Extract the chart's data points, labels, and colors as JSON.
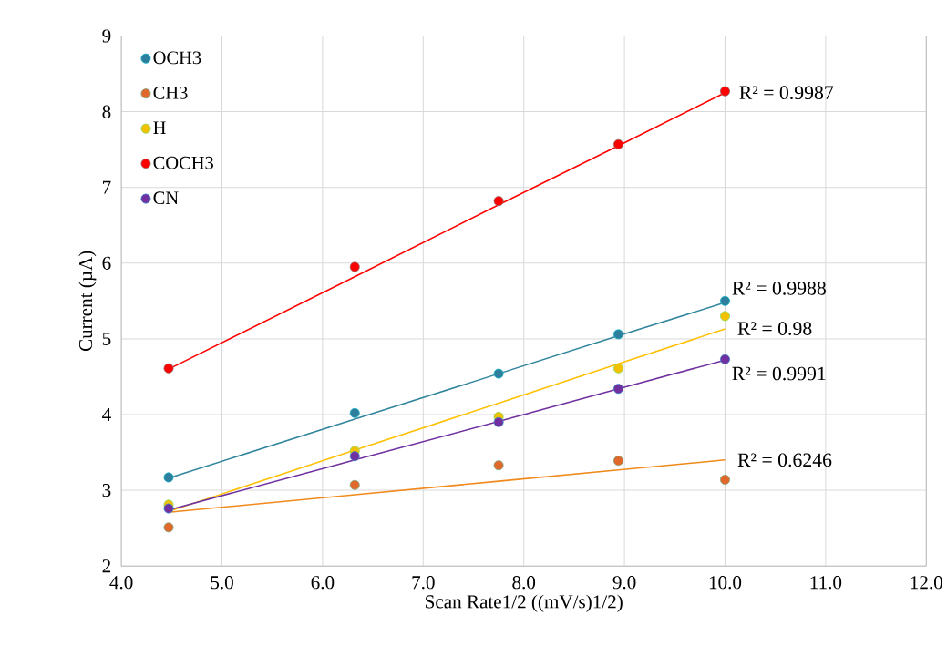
{
  "chart_data": {
    "type": "scatter",
    "xlabel": "Scan Rate1/2 ((mV/s)1/2)",
    "ylabel": "Current (µA)",
    "xlim": [
      4,
      12
    ],
    "ylim": [
      2,
      9
    ],
    "xticks": [
      {
        "value": 4,
        "label": "4.0"
      },
      {
        "value": 5,
        "label": "5.0"
      },
      {
        "value": 6,
        "label": "6.0"
      },
      {
        "value": 7,
        "label": "7.0"
      },
      {
        "value": 8,
        "label": "8.0"
      },
      {
        "value": 9,
        "label": "9.0"
      },
      {
        "value": 10,
        "label": "10.0"
      },
      {
        "value": 11,
        "label": "11.0"
      },
      {
        "value": 12,
        "label": "12.0"
      }
    ],
    "yticks": [
      2,
      3,
      4,
      5,
      6,
      7,
      8,
      9
    ],
    "grid": true,
    "legend": "top left",
    "marker": "circle",
    "x": [
      4.47,
      6.32,
      7.75,
      8.94,
      10.0
    ],
    "series": [
      {
        "name": "OCH3",
        "color": "#2e7f9e",
        "values": [
          3.17,
          4.02,
          4.54,
          5.06,
          5.5
        ]
      },
      {
        "name": "CH3",
        "color": "#e0682a",
        "values": [
          2.51,
          3.07,
          3.33,
          3.39,
          3.14
        ]
      },
      {
        "name": "H",
        "color": "#f2c200",
        "values": [
          2.81,
          3.52,
          3.97,
          4.61,
          5.3
        ]
      },
      {
        "name": "COCH3",
        "color": "#ff0000",
        "values": [
          4.61,
          5.95,
          6.82,
          7.57,
          8.27
        ]
      },
      {
        "name": "CN",
        "color": "#7030a0",
        "values": [
          2.76,
          3.45,
          3.9,
          4.34,
          4.73
        ]
      },
      {
        "type": "line",
        "marker": "none",
        "color": "#31859c",
        "values": [
          3.16,
          3.94,
          4.54,
          5.04,
          5.48
        ]
      },
      {
        "type": "line",
        "marker": "none",
        "color": "#f08a1c",
        "values": [
          2.71,
          2.94,
          3.12,
          3.27,
          3.4
        ]
      },
      {
        "type": "line",
        "marker": "none",
        "color": "#ffc000",
        "values": [
          2.72,
          3.53,
          4.15,
          4.67,
          5.13
        ]
      },
      {
        "type": "line",
        "marker": "none",
        "color": "#ff0000",
        "values": [
          4.6,
          5.82,
          6.77,
          7.55,
          8.25
        ]
      },
      {
        "type": "line",
        "marker": "none",
        "color": "#7030a0",
        "values": [
          2.74,
          3.4,
          3.91,
          4.34,
          4.72
        ]
      }
    ],
    "annotations": [
      "R² = 0.9987",
      "R² = 0.9988",
      "R² = 0.98",
      "R² = 0.9991",
      "R² = 0.6246"
    ]
  }
}
